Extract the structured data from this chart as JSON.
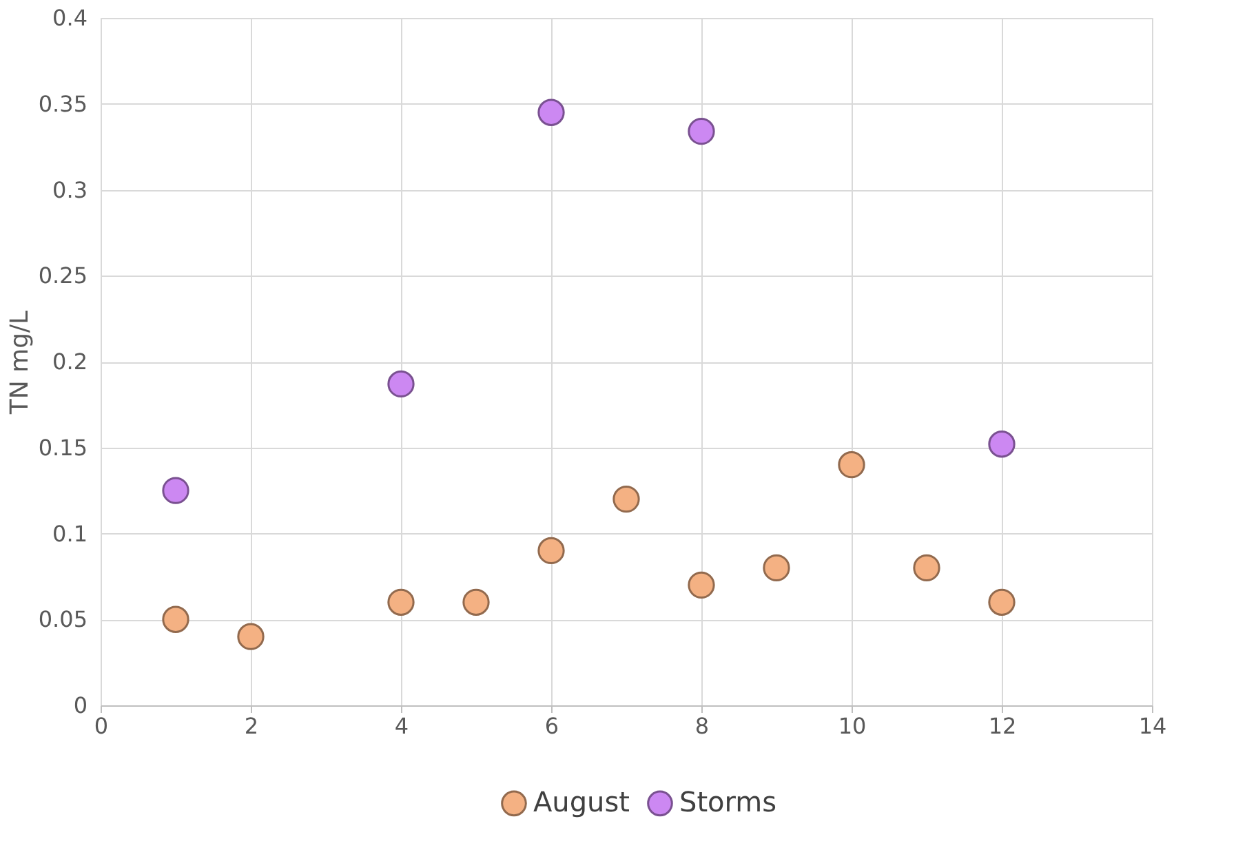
{
  "chart_data": {
    "type": "scatter",
    "ylabel": "TN mg/L",
    "xlim": [
      0,
      14
    ],
    "xticks": [
      0,
      2,
      4,
      6,
      8,
      10,
      12,
      14
    ],
    "ylim": [
      0,
      0.4
    ],
    "yticks": [
      0,
      0.05,
      0.1,
      0.15,
      0.2,
      0.25,
      0.3,
      0.35,
      0.4
    ],
    "grid": true,
    "legend": "bottom",
    "marker": "circle",
    "series": [
      {
        "name": "August",
        "color": "#f4b183",
        "x": [
          1,
          2,
          4,
          5,
          6,
          7,
          8,
          9,
          10,
          11,
          12
        ],
        "values": [
          0.05,
          0.04,
          0.06,
          0.06,
          0.09,
          0.12,
          0.07,
          0.08,
          0.14,
          0.08,
          0.06
        ]
      },
      {
        "name": "Storms",
        "color": "#cc88f2",
        "x": [
          1,
          4,
          6,
          8,
          12
        ],
        "values": [
          0.125,
          0.187,
          0.345,
          0.334,
          0.152
        ]
      }
    ]
  }
}
